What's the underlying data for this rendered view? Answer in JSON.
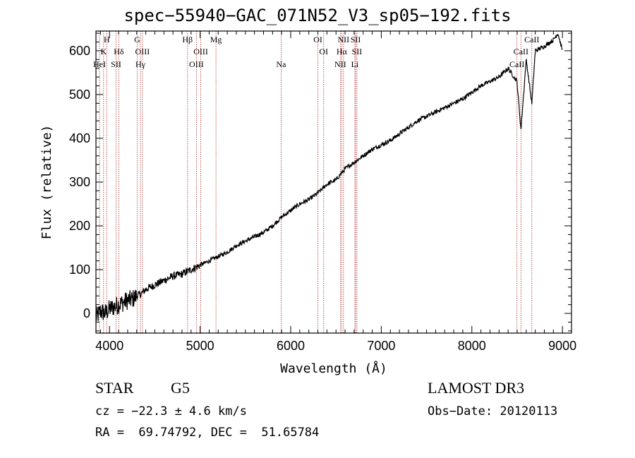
{
  "chart_data": {
    "type": "line",
    "title": "spec−55940−GAC_071N52_V3_sp05−192.fits",
    "xlabel": "Wavelength (Å)",
    "ylabel": "Flux (relative)",
    "xlim": [
      3850,
      9100
    ],
    "ylim": [
      -45,
      645
    ],
    "xticks": [
      4000,
      5000,
      6000,
      7000,
      8000,
      9000
    ],
    "yticks": [
      0,
      100,
      200,
      300,
      400,
      500,
      600
    ],
    "series": [
      {
        "name": "spectrum",
        "x": [
          3850,
          3900,
          3950,
          4000,
          4050,
          4100,
          4150,
          4200,
          4250,
          4300,
          4350,
          4400,
          4500,
          4600,
          4700,
          4800,
          4900,
          5000,
          5100,
          5200,
          5300,
          5400,
          5500,
          5600,
          5700,
          5800,
          5900,
          6000,
          6100,
          6200,
          6300,
          6400,
          6500,
          6560,
          6600,
          6700,
          6800,
          6900,
          7000,
          7100,
          7200,
          7300,
          7400,
          7500,
          7600,
          7700,
          7800,
          7900,
          8000,
          8100,
          8200,
          8300,
          8400,
          8498,
          8542,
          8600,
          8662,
          8700,
          8800,
          8900,
          8950,
          9000
        ],
        "y": [
          -10,
          5,
          0,
          10,
          15,
          20,
          25,
          30,
          32,
          40,
          45,
          55,
          65,
          75,
          85,
          90,
          100,
          110,
          120,
          130,
          140,
          155,
          165,
          175,
          185,
          200,
          220,
          235,
          250,
          260,
          275,
          295,
          305,
          320,
          330,
          345,
          360,
          375,
          385,
          395,
          410,
          425,
          440,
          450,
          460,
          470,
          480,
          490,
          505,
          520,
          530,
          540,
          560,
          530,
          420,
          580,
          480,
          600,
          610,
          625,
          640,
          600
        ]
      }
    ],
    "lines": [
      {
        "name": "HeI",
        "x": 3889
      },
      {
        "name": "K",
        "x": 3934
      },
      {
        "name": "H",
        "x": 3969
      },
      {
        "name": "SII",
        "x": 4072
      },
      {
        "name": "Hδ",
        "x": 4102
      },
      {
        "name": "G",
        "x": 4305
      },
      {
        "name": "Hγ",
        "x": 4341
      },
      {
        "name": "OIII",
        "x": 4363
      },
      {
        "name": "Hβ",
        "x": 4861
      },
      {
        "name": "OIII",
        "x": 4959
      },
      {
        "name": "OIII",
        "x": 5007
      },
      {
        "name": "Mg",
        "x": 5175
      },
      {
        "name": "Na",
        "x": 5894
      },
      {
        "name": "OI",
        "x": 6300
      },
      {
        "name": "OI",
        "x": 6364
      },
      {
        "name": "NII",
        "x": 6548
      },
      {
        "name": "Hα",
        "x": 6563
      },
      {
        "name": "NII",
        "x": 6583
      },
      {
        "name": "Li",
        "x": 6708
      },
      {
        "name": "SII",
        "x": 6717
      },
      {
        "name": "SII",
        "x": 6731
      },
      {
        "name": "CaII",
        "x": 8498
      },
      {
        "name": "CaII",
        "x": 8542
      },
      {
        "name": "CaII",
        "x": 8662
      }
    ],
    "line_labels": [
      {
        "text": "H",
        "x": 3969,
        "row": 0
      },
      {
        "text": "K",
        "x": 3934,
        "row": 1
      },
      {
        "text": "HeI",
        "x": 3889,
        "row": 2
      },
      {
        "text": "Hδ",
        "x": 4102,
        "row": 1
      },
      {
        "text": "SII",
        "x": 4072,
        "row": 2
      },
      {
        "text": "G",
        "x": 4305,
        "row": 0
      },
      {
        "text": "OIII",
        "x": 4363,
        "row": 1
      },
      {
        "text": "Hγ",
        "x": 4341,
        "row": 2
      },
      {
        "text": "Hβ",
        "x": 4861,
        "row": 0
      },
      {
        "text": "OIII",
        "x": 5007,
        "row": 1
      },
      {
        "text": "OIII",
        "x": 4959,
        "row": 2
      },
      {
        "text": "Mg",
        "x": 5175,
        "row": 0
      },
      {
        "text": "Na",
        "x": 5894,
        "row": 2
      },
      {
        "text": "OI",
        "x": 6300,
        "row": 0
      },
      {
        "text": "OI",
        "x": 6364,
        "row": 1
      },
      {
        "text": "NII",
        "x": 6583,
        "row": 0
      },
      {
        "text": "SII",
        "x": 6717,
        "row": 0
      },
      {
        "text": "Hα",
        "x": 6563,
        "row": 1
      },
      {
        "text": "SII",
        "x": 6731,
        "row": 1
      },
      {
        "text": "NII",
        "x": 6548,
        "row": 2
      },
      {
        "text": "Li",
        "x": 6708,
        "row": 2
      },
      {
        "text": "CaII",
        "x": 8662,
        "row": 0
      },
      {
        "text": "CaII",
        "x": 8542,
        "row": 1
      },
      {
        "text": "CaII",
        "x": 8498,
        "row": 2
      }
    ],
    "colors": {
      "line_marker": "#b03030",
      "spectrum": "#000000"
    }
  },
  "info": {
    "object_class": "STAR",
    "subclass": "G5",
    "survey": "LAMOST DR3",
    "redshift": "cz = −22.3 ± 4.6 km/s",
    "obs_date": "Obs−Date: 20120113",
    "coords": "RA =  69.74792, DEC =  51.65784"
  }
}
